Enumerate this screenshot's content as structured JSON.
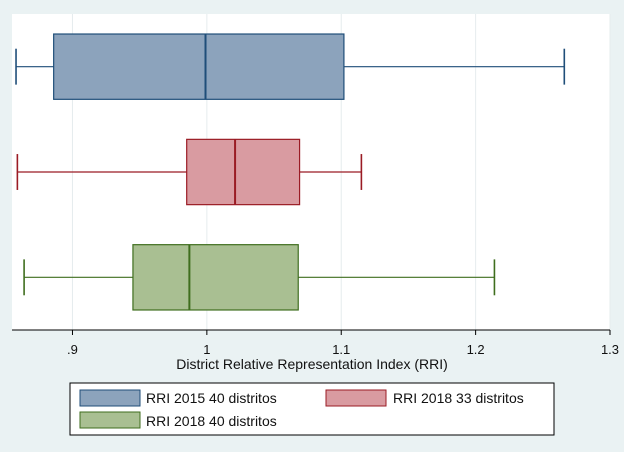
{
  "chart_data": {
    "type": "boxplot",
    "orientation": "horizontal",
    "title": "",
    "xlabel": "District Relative Representation Index (RRI)",
    "ylabel": "",
    "xlim": [
      0.855,
      1.3
    ],
    "xticks": [
      0.9,
      1,
      1.1,
      1.2,
      1.3
    ],
    "xtick_labels": [
      ".9",
      "1",
      "1.1",
      "1.2",
      "1.3"
    ],
    "grid": true,
    "legend_position": "bottom",
    "series": [
      {
        "name": "RRI 2015 40 distritos",
        "min": 0.858,
        "q1": 0.886,
        "median": 0.999,
        "q3": 1.102,
        "max": 1.266,
        "fill": "#8ca3bc",
        "stroke": "#1f4e79"
      },
      {
        "name": "RRI 2018 33 distritos",
        "min": 0.859,
        "q1": 0.985,
        "median": 1.021,
        "q3": 1.069,
        "max": 1.115,
        "fill": "#d99ba1",
        "stroke": "#9a1b24"
      },
      {
        "name": "RRI 2018 40 distritos",
        "min": 0.864,
        "q1": 0.945,
        "median": 0.987,
        "q3": 1.068,
        "max": 1.214,
        "fill": "#a9bf92",
        "stroke": "#3f6e1e"
      }
    ]
  }
}
